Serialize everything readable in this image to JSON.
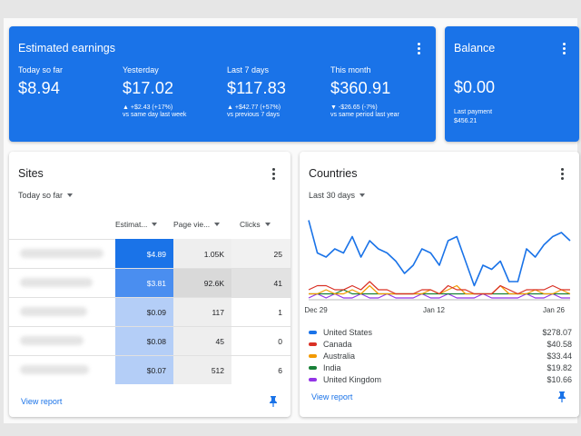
{
  "earnings": {
    "title": "Estimated earnings",
    "stats": [
      {
        "label": "Today so far",
        "value": "$8.94",
        "delta": "",
        "compare": ""
      },
      {
        "label": "Yesterday",
        "value": "$17.02",
        "delta": "▲ +$2.43 (+17%)",
        "compare": "vs same day last week"
      },
      {
        "label": "Last 7 days",
        "value": "$117.83",
        "delta": "▲ +$42.77 (+57%)",
        "compare": "vs previous 7 days"
      },
      {
        "label": "This month",
        "value": "$360.91",
        "delta": "▼ -$26.65 (-7%)",
        "compare": "vs same period last year"
      }
    ]
  },
  "balance": {
    "title": "Balance",
    "value": "$0.00",
    "last_payment_label": "Last payment",
    "last_payment_value": "$456.21"
  },
  "sites": {
    "title": "Sites",
    "period": "Today so far",
    "columns": [
      "Estimat...",
      "Page vie...",
      "Clicks"
    ],
    "rows": [
      {
        "earnings": "$4.89",
        "pageviews": "1.05K",
        "clicks": "25"
      },
      {
        "earnings": "$3.81",
        "pageviews": "92.6K",
        "clicks": "41"
      },
      {
        "earnings": "$0.09",
        "pageviews": "117",
        "clicks": "1"
      },
      {
        "earnings": "$0.08",
        "pageviews": "45",
        "clicks": "0"
      },
      {
        "earnings": "$0.07",
        "pageviews": "512",
        "clicks": "6"
      }
    ],
    "view_report": "View report"
  },
  "countries": {
    "title": "Countries",
    "period": "Last 30 days",
    "view_report": "View report",
    "legend": [
      {
        "name": "United States",
        "amount": "$278.07",
        "color": "#1a73e8"
      },
      {
        "name": "Canada",
        "amount": "$40.58",
        "color": "#d93025"
      },
      {
        "name": "Australia",
        "amount": "$33.44",
        "color": "#f29900"
      },
      {
        "name": "India",
        "amount": "$19.82",
        "color": "#188038"
      },
      {
        "name": "United Kingdom",
        "amount": "$10.66",
        "color": "#9334e6"
      }
    ]
  },
  "chart_data": {
    "type": "line",
    "x_ticks": [
      "Dec 29",
      "Jan 12",
      "Jan 26"
    ],
    "ylim": [
      0,
      20
    ],
    "grid": false,
    "series": [
      {
        "name": "United States",
        "color": "#1a73e8",
        "values": [
          19,
          11,
          10,
          12,
          11,
          15,
          10,
          14,
          12,
          11,
          9,
          6,
          8,
          12,
          11,
          8,
          14,
          15,
          9,
          3,
          8,
          7,
          9,
          4,
          4,
          12,
          10,
          13,
          15,
          16,
          14
        ]
      },
      {
        "name": "Canada",
        "color": "#d93025",
        "values": [
          2,
          3,
          3,
          2,
          2,
          3,
          2,
          4,
          2,
          2,
          1,
          1,
          1,
          2,
          2,
          1,
          3,
          2,
          2,
          1,
          1,
          1,
          3,
          2,
          1,
          2,
          2,
          2,
          3,
          2,
          2
        ]
      },
      {
        "name": "Australia",
        "color": "#f29900",
        "values": [
          1,
          1,
          2,
          1,
          1,
          2,
          1,
          3,
          1,
          1,
          1,
          1,
          1,
          1,
          2,
          1,
          2,
          3,
          1,
          1,
          1,
          1,
          3,
          1,
          1,
          1,
          2,
          1,
          1,
          2,
          1
        ]
      },
      {
        "name": "India",
        "color": "#188038",
        "values": [
          1,
          1,
          1,
          1,
          2,
          1,
          1,
          1,
          1,
          1,
          1,
          1,
          1,
          1,
          1,
          1,
          1,
          1,
          1,
          1,
          1,
          1,
          1,
          1,
          1,
          1,
          1,
          1,
          1,
          1,
          1
        ]
      },
      {
        "name": "United Kingdom",
        "color": "#9334e6",
        "values": [
          0,
          1,
          0,
          1,
          0,
          0,
          1,
          0,
          0,
          1,
          0,
          0,
          0,
          1,
          0,
          0,
          1,
          0,
          0,
          0,
          1,
          0,
          0,
          0,
          0,
          1,
          0,
          0,
          1,
          0,
          0
        ]
      }
    ]
  }
}
